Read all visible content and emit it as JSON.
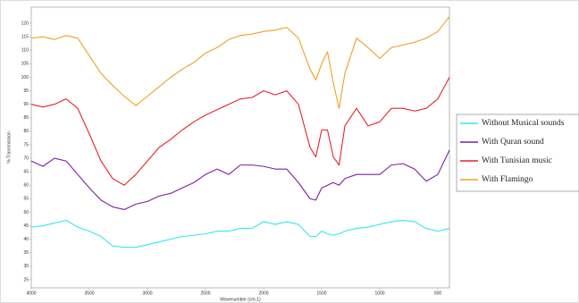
{
  "chart_data": {
    "type": "line",
    "x_label": "Wavenumber (cm-1)",
    "y_label": "% Transmission",
    "x": [
      4000,
      3900,
      3800,
      3700,
      3600,
      3500,
      3400,
      3300,
      3200,
      3100,
      3000,
      2900,
      2800,
      2700,
      2600,
      2500,
      2400,
      2300,
      2200,
      2100,
      2000,
      1900,
      1800,
      1700,
      1600,
      1550,
      1500,
      1450,
      1400,
      1350,
      1300,
      1200,
      1100,
      1000,
      900,
      800,
      700,
      600,
      500,
      400
    ],
    "series": [
      {
        "name": "Without Musical sounds",
        "color": "#33e6f0",
        "values": [
          44.5,
          45,
          46,
          47,
          44.5,
          43,
          41,
          37.5,
          37,
          37,
          38,
          39,
          40,
          41,
          41.5,
          42,
          43,
          43,
          44,
          44,
          46.5,
          45.5,
          46.5,
          45.5,
          41,
          41,
          43,
          42,
          41.5,
          42,
          43,
          44,
          44.5,
          45.5,
          46.5,
          47,
          46.5,
          44,
          43,
          44
        ]
      },
      {
        "name": "With Quran sound",
        "color": "#7b1fa2",
        "values": [
          69,
          67,
          70,
          69,
          64,
          59,
          54.5,
          52,
          51,
          53,
          54,
          56,
          57,
          59,
          61,
          64,
          66,
          64,
          67.5,
          67.5,
          67,
          66,
          66,
          61,
          55,
          54.5,
          59,
          60,
          61,
          60,
          62.5,
          64,
          64,
          64,
          67.5,
          68,
          66,
          61.5,
          64,
          73
        ]
      },
      {
        "name": "With Tunisian music",
        "color": "#e8212a",
        "values": [
          90,
          89,
          90,
          92,
          88.5,
          79,
          69,
          62.5,
          60,
          64,
          69,
          74,
          77,
          80.5,
          83.5,
          86,
          88,
          90,
          92,
          92.5,
          95,
          93.5,
          95,
          90,
          74,
          70.5,
          80.5,
          80.5,
          70.5,
          67.5,
          82,
          88.5,
          82,
          83.5,
          88.5,
          88.5,
          87.5,
          88.5,
          92,
          100
        ]
      },
      {
        "name": "With Flamingo",
        "color": "#f0a020",
        "values": [
          114.5,
          115,
          114,
          115.5,
          114.5,
          108,
          101.5,
          97,
          93,
          89.5,
          93,
          96.5,
          100,
          103,
          105.5,
          109,
          111,
          114,
          115.5,
          116,
          117,
          117.5,
          118.5,
          114.5,
          103,
          99,
          105,
          109.5,
          98,
          88.5,
          101.5,
          114.5,
          111,
          107,
          111,
          112,
          113,
          114.5,
          117,
          122.5
        ]
      }
    ],
    "xlim": [
      4000,
      400
    ],
    "xticks": [
      4000,
      3500,
      3000,
      2500,
      2000,
      1500,
      1000,
      500
    ],
    "ylim": [
      22,
      126
    ],
    "yticks": [
      25,
      30,
      35,
      40,
      45,
      50,
      55,
      60,
      65,
      70,
      75,
      80,
      85,
      90,
      95,
      100,
      105,
      110,
      115,
      120
    ],
    "legend": "right"
  }
}
